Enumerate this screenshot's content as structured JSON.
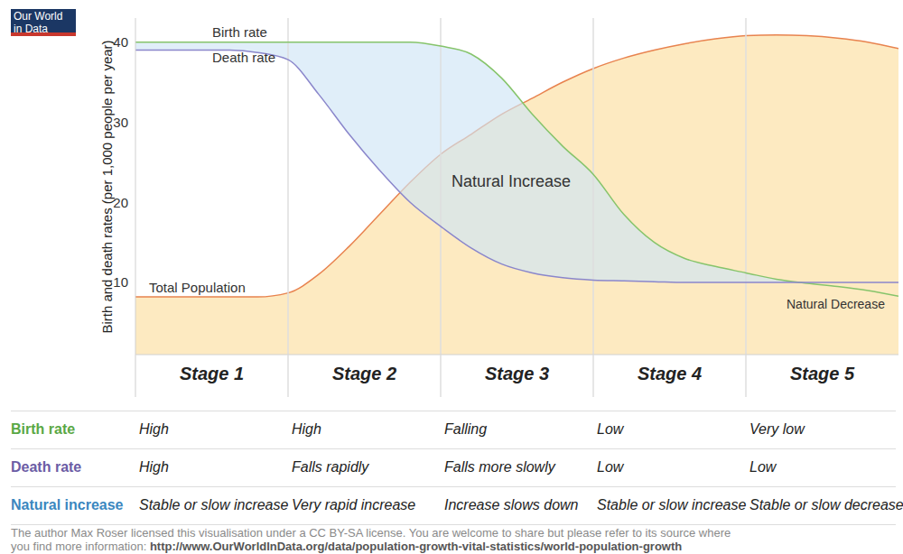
{
  "logo": "Our World in Data",
  "chart_data": {
    "type": "line",
    "y_label": "Birth and death rates (per 1,000 people per year)",
    "x": [
      0,
      2,
      4,
      6,
      8,
      10,
      12,
      14,
      16,
      18,
      20,
      22,
      24,
      26,
      28,
      30,
      32,
      34,
      36,
      38,
      40,
      42,
      44,
      46,
      48,
      50
    ],
    "series": [
      {
        "name": "Birth rate",
        "color": "#86c46b",
        "values": [
          40,
          40,
          40,
          40,
          40,
          40,
          40,
          40,
          40,
          40,
          39.5,
          38.5,
          35.5,
          31,
          27,
          23.5,
          18.5,
          15,
          13,
          12,
          11.2,
          10.4,
          9.9,
          9.5,
          9,
          8.3
        ]
      },
      {
        "name": "Death rate",
        "color": "#8a86cb",
        "values": [
          39,
          39,
          39,
          39,
          38.7,
          37.8,
          33.5,
          28.5,
          24,
          20,
          17,
          14.3,
          12.3,
          11.2,
          10.6,
          10.3,
          10.2,
          10.1,
          10,
          10,
          10,
          10,
          10,
          10,
          10,
          10
        ]
      },
      {
        "name": "Total Population",
        "color": "#e8834f",
        "type": "area",
        "values": [
          8.2,
          8.2,
          8.2,
          8.2,
          8.2,
          8.7,
          11,
          14.5,
          18.5,
          22.5,
          26,
          28.5,
          31,
          33,
          35,
          36.7,
          38,
          39,
          39.8,
          40.4,
          40.8,
          40.9,
          40.8,
          40.5,
          40,
          39.2
        ]
      }
    ],
    "annotations": [
      "Natural Increase",
      "Natural Decrease"
    ],
    "xlim": [
      0,
      50
    ],
    "ylim": [
      1,
      43
    ],
    "yticks": [
      10,
      20,
      30,
      40
    ],
    "grid": false,
    "tick_labels": "y"
  },
  "table": {
    "header": [
      "Stage 1",
      "Stage 2",
      "Stage 3",
      "Stage 4",
      "Stage 5"
    ],
    "rows": [
      {
        "label": "Birth rate",
        "color": "#5aa845",
        "cells": [
          "High",
          "High",
          "Falling",
          "Low",
          "Very low"
        ]
      },
      {
        "label": "Death rate",
        "color": "#6b5ca5",
        "cells": [
          "High",
          "Falls rapidly",
          "Falls more slowly",
          "Low",
          "Low"
        ]
      },
      {
        "label": "Natural increase",
        "color": "#3b87bf",
        "cells": [
          "Stable or slow increase",
          "Very rapid increase",
          "Increase slows down",
          "Stable or slow increase",
          "Stable or slow decrease"
        ]
      }
    ]
  },
  "footer": {
    "text": "The author Max Roser licensed this visualisation under a CC BY-SA license. You are welcome to share but please refer to its source where you find more information:",
    "link": "http://www.OurWorldInData.org/data/population-growth-vital-statistics/world-population-growth"
  }
}
